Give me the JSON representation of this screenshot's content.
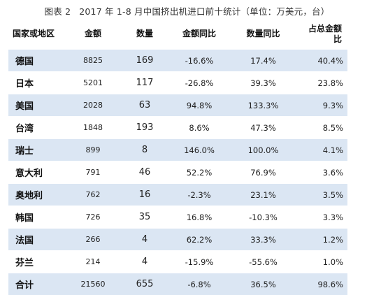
{
  "caption": {
    "figure_no": "图表 2",
    "title": "2017 年 1-8 月中国挤出机进口前十统计（单位：万美元，台）"
  },
  "table": {
    "headers": {
      "region": "国家或地区",
      "amount": "金额",
      "qty": "数量",
      "amount_yoy": "金额同比",
      "qty_yoy": "数量同比",
      "share_line1": "占总金额",
      "share_line2": "比"
    },
    "rows": [
      {
        "region": "德国",
        "amount": "8825",
        "qty": "169",
        "amount_yoy": "-16.6%",
        "qty_yoy": "17.4%",
        "share": "40.4%"
      },
      {
        "region": "日本",
        "amount": "5201",
        "qty": "117",
        "amount_yoy": "-26.8%",
        "qty_yoy": "39.3%",
        "share": "23.8%"
      },
      {
        "region": "美国",
        "amount": "2028",
        "qty": "63",
        "amount_yoy": "94.8%",
        "qty_yoy": "133.3%",
        "share": "9.3%"
      },
      {
        "region": "台湾",
        "amount": "1848",
        "qty": "193",
        "amount_yoy": "8.6%",
        "qty_yoy": "47.3%",
        "share": "8.5%"
      },
      {
        "region": "瑞士",
        "amount": "899",
        "qty": "8",
        "amount_yoy": "146.0%",
        "qty_yoy": "100.0%",
        "share": "4.1%"
      },
      {
        "region": "意大利",
        "amount": "791",
        "qty": "46",
        "amount_yoy": "52.2%",
        "qty_yoy": "76.9%",
        "share": "3.6%"
      },
      {
        "region": "奥地利",
        "amount": "762",
        "qty": "16",
        "amount_yoy": "-2.3%",
        "qty_yoy": "23.1%",
        "share": "3.5%"
      },
      {
        "region": "韩国",
        "amount": "726",
        "qty": "35",
        "amount_yoy": "16.8%",
        "qty_yoy": "-10.3%",
        "share": "3.3%"
      },
      {
        "region": "法国",
        "amount": "266",
        "qty": "4",
        "amount_yoy": "62.2%",
        "qty_yoy": "33.3%",
        "share": "1.2%"
      },
      {
        "region": "芬兰",
        "amount": "214",
        "qty": "4",
        "amount_yoy": "-15.9%",
        "qty_yoy": "-55.6%",
        "share": "1.0%"
      }
    ],
    "total": {
      "region": "合计",
      "amount": "21560",
      "qty": "655",
      "amount_yoy": "-6.8%",
      "qty_yoy": "36.5%",
      "share": "98.6%"
    }
  },
  "colors": {
    "row_shade": "#dbe6f3",
    "text": "#222222"
  }
}
